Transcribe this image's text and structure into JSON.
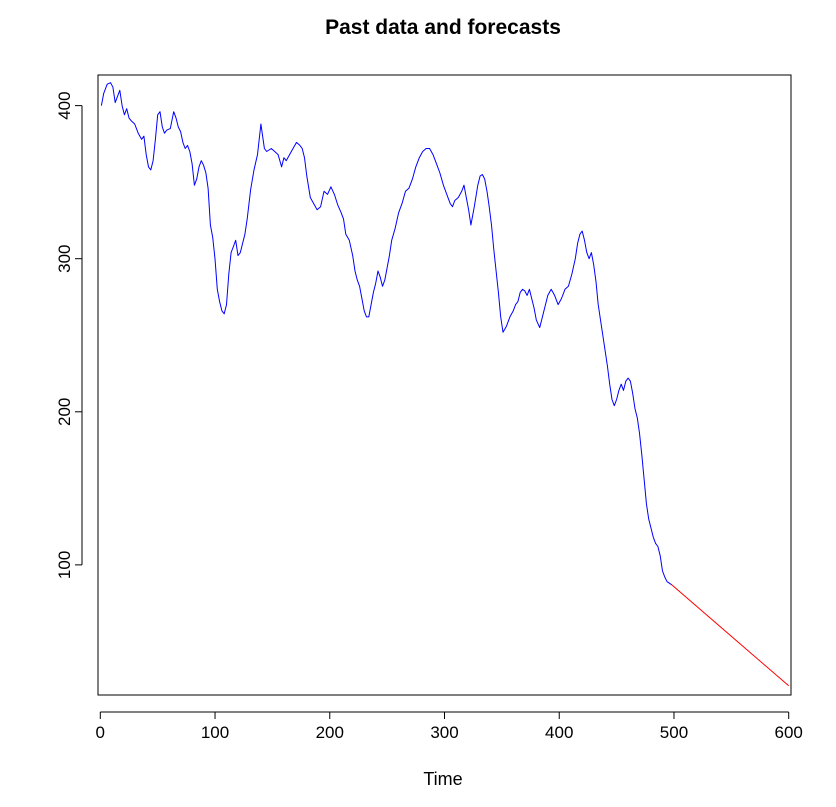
{
  "chart_data": {
    "type": "line",
    "title": "Past data and forecasts",
    "xlabel": "Time",
    "ylabel": "",
    "xlim": [
      -2,
      602
    ],
    "ylim": [
      15,
      420
    ],
    "xticks": [
      0,
      100,
      200,
      300,
      400,
      500,
      600
    ],
    "yticks": [
      100,
      200,
      300,
      400
    ],
    "grid": false,
    "series": [
      {
        "color": "#0000ff",
        "x": [
          1,
          3,
          6,
          9,
          11,
          13,
          15,
          17,
          19,
          21,
          23,
          25,
          27,
          30,
          33,
          36,
          38,
          40,
          42,
          44,
          46,
          48,
          50,
          52,
          54,
          56,
          58,
          61,
          64,
          66,
          68,
          70,
          72,
          74,
          76,
          78,
          80,
          82,
          84,
          86,
          88,
          90,
          92,
          94,
          96,
          98,
          100,
          102,
          104,
          106,
          108,
          110,
          112,
          114,
          116,
          118,
          120,
          122,
          124,
          126,
          128,
          131,
          134,
          137,
          140,
          143,
          145,
          147,
          149,
          152,
          155,
          158,
          160,
          162,
          165,
          168,
          171,
          174,
          176,
          178,
          180,
          183,
          186,
          189,
          192,
          195,
          198,
          201,
          204,
          207,
          210,
          212,
          214,
          217,
          220,
          222,
          224,
          226,
          228,
          230,
          232,
          234,
          236,
          238,
          240,
          242,
          244,
          246,
          248,
          250,
          252,
          254,
          257,
          260,
          263,
          266,
          269,
          272,
          275,
          278,
          281,
          284,
          287,
          290,
          293,
          296,
          299,
          302,
          305,
          307,
          309,
          312,
          315,
          317,
          319,
          321,
          323,
          326,
          329,
          331,
          333,
          335,
          337,
          339,
          341,
          343,
          345,
          347,
          349,
          351,
          354,
          357,
          360,
          362,
          364,
          366,
          368,
          370,
          372,
          374,
          376,
          378,
          380,
          383,
          386,
          388,
          390,
          393,
          396,
          399,
          402,
          405,
          408,
          411,
          414,
          416,
          418,
          420,
          422,
          424,
          426,
          428,
          430,
          432,
          434,
          436,
          438,
          440,
          442,
          444,
          446,
          448,
          450,
          452,
          454,
          456,
          458,
          460,
          462,
          464,
          466,
          468,
          470,
          472,
          474,
          476,
          478,
          480,
          482,
          484,
          486,
          488,
          490,
          492,
          494,
          496,
          498
        ],
        "y": [
          400,
          408,
          414,
          415,
          412,
          402,
          406,
          410,
          400,
          394,
          398,
          392,
          390,
          388,
          382,
          378,
          380,
          368,
          360,
          358,
          364,
          378,
          394,
          396,
          386,
          382,
          384,
          385,
          396,
          392,
          386,
          383,
          376,
          372,
          374,
          370,
          362,
          348,
          352,
          360,
          364,
          361,
          356,
          346,
          322,
          314,
          300,
          280,
          272,
          266,
          264,
          270,
          290,
          304,
          308,
          312,
          302,
          304,
          310,
          316,
          326,
          345,
          358,
          368,
          388,
          372,
          370,
          371,
          372,
          370,
          368,
          360,
          366,
          364,
          368,
          372,
          376,
          374,
          372,
          366,
          354,
          340,
          336,
          332,
          334,
          344,
          342,
          347,
          342,
          335,
          330,
          326,
          316,
          312,
          302,
          292,
          286,
          282,
          274,
          266,
          262,
          262,
          270,
          278,
          284,
          292,
          288,
          282,
          286,
          294,
          302,
          312,
          320,
          330,
          336,
          344,
          346,
          352,
          360,
          366,
          370,
          372,
          372,
          368,
          362,
          356,
          348,
          342,
          336,
          334,
          338,
          340,
          344,
          348,
          340,
          332,
          322,
          334,
          348,
          354,
          355,
          352,
          344,
          334,
          322,
          306,
          292,
          278,
          262,
          252,
          256,
          262,
          266,
          270,
          272,
          278,
          280,
          279,
          276,
          280,
          274,
          268,
          260,
          255,
          264,
          270,
          276,
          280,
          276,
          270,
          274,
          280,
          282,
          290,
          300,
          310,
          316,
          318,
          312,
          304,
          300,
          304,
          296,
          285,
          270,
          260,
          250,
          240,
          230,
          218,
          208,
          204,
          208,
          214,
          218,
          214,
          220,
          222,
          220,
          212,
          202,
          196,
          186,
          172,
          156,
          140,
          130,
          124,
          118,
          114,
          112,
          106,
          96,
          92,
          89,
          88,
          87
        ]
      },
      {
        "color": "#ff0000",
        "x": [
          498,
          600
        ],
        "y": [
          87,
          21
        ]
      }
    ]
  }
}
